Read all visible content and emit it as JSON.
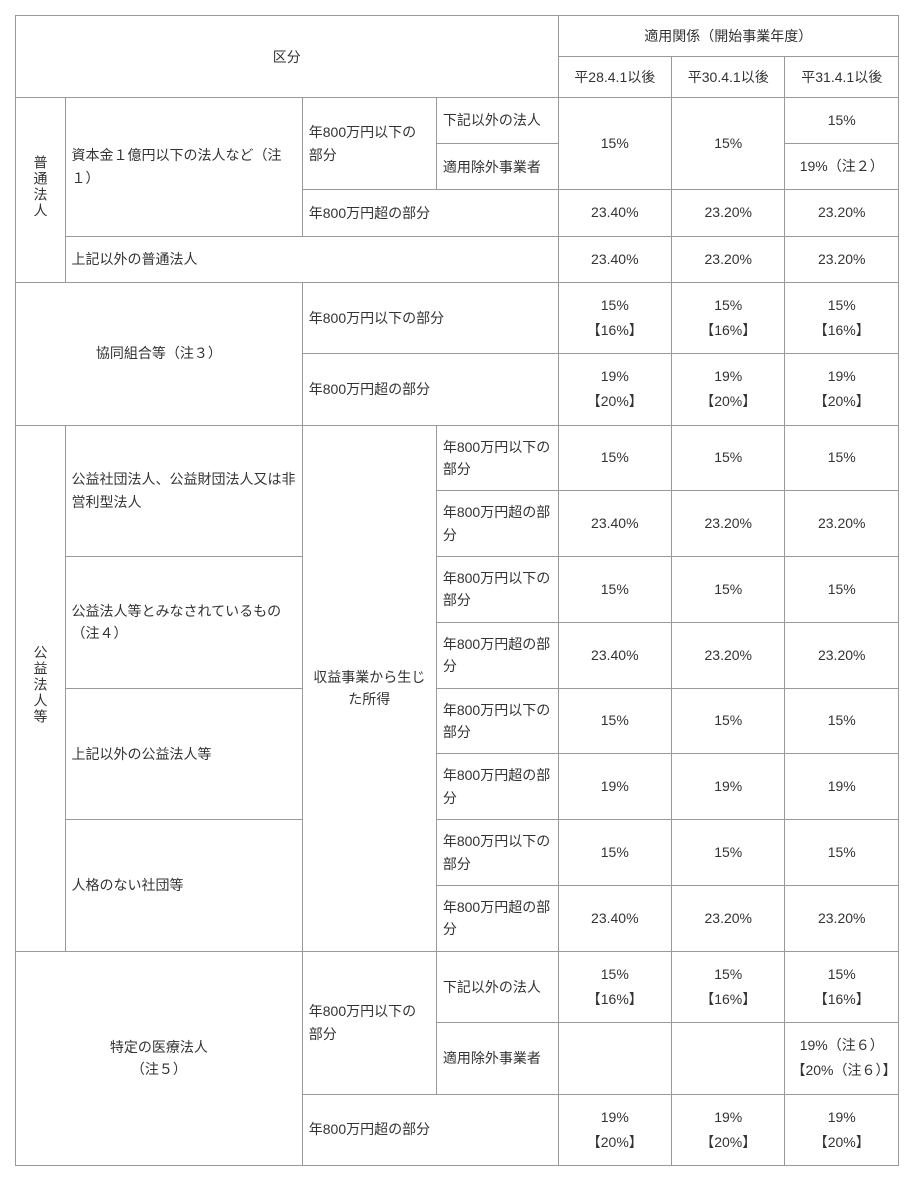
{
  "headers": {
    "category": "区分",
    "applicable_relation": "適用関係（開始事業年度）",
    "period1": "平28.4.1以後",
    "period2": "平30.4.1以後",
    "period3": "平31.4.1以後"
  },
  "cat_ordinary": "普通法人",
  "cat_public": "公益法人等",
  "ordinary": {
    "capital_1oku": "資本金１億円以下の法人など（注１）",
    "under800": "年800万円以下の部分",
    "other_corp": "下記以外の法人",
    "excluded": "適用除外事業者",
    "over800": "年800万円超の部分",
    "other_ordinary": "上記以外の普通法人"
  },
  "coop": {
    "label": "協同組合等（注３）",
    "under800": "年800万円以下の部分",
    "over800": "年800万円超の部分"
  },
  "public": {
    "koeki_shadan": "公益社団法人、公益財団法人又は非営利型法人",
    "deemed": "公益法人等とみなされているもの（注４）",
    "other_public": "上記以外の公益法人等",
    "incorp_assoc": "人格のない社団等",
    "profit_income": "収益事業から生じた所得",
    "under800": "年800万円以下の部分",
    "over800": "年800万円超の部分"
  },
  "medical": {
    "label": "特定の医療法人\n（注５）",
    "under800": "年800万円以下の部分",
    "other_corp": "下記以外の法人",
    "excluded": "適用除外事業者",
    "over800": "年800万円超の部分"
  },
  "vals": {
    "ord_other_corp": [
      "15%",
      "15%",
      "15%"
    ],
    "ord_excluded": [
      "",
      "",
      "19%（注２）"
    ],
    "ord_over800": [
      "23.40%",
      "23.20%",
      "23.20%"
    ],
    "ord_other": [
      "23.40%",
      "23.20%",
      "23.20%"
    ],
    "coop_under": [
      "15%\n【16%】",
      "15%\n【16%】",
      "15%\n【16%】"
    ],
    "coop_over": [
      "19%\n【20%】",
      "19%\n【20%】",
      "19%\n【20%】"
    ],
    "pub_a_under": [
      "15%",
      "15%",
      "15%"
    ],
    "pub_a_over": [
      "23.40%",
      "23.20%",
      "23.20%"
    ],
    "pub_b_under": [
      "15%",
      "15%",
      "15%"
    ],
    "pub_b_over": [
      "23.40%",
      "23.20%",
      "23.20%"
    ],
    "pub_c_under": [
      "15%",
      "15%",
      "15%"
    ],
    "pub_c_over": [
      "19%",
      "19%",
      "19%"
    ],
    "pub_d_under": [
      "15%",
      "15%",
      "15%"
    ],
    "pub_d_over": [
      "23.40%",
      "23.20%",
      "23.20%"
    ],
    "med_other_corp": [
      "15%\n【16%】",
      "15%\n【16%】",
      "15%\n【16%】"
    ],
    "med_excluded": [
      "",
      "",
      "19%（注６）\n【20%（注６）】"
    ],
    "med_over": [
      "19%\n【20%】",
      "19%\n【20%】",
      "19%\n【20%】"
    ]
  }
}
